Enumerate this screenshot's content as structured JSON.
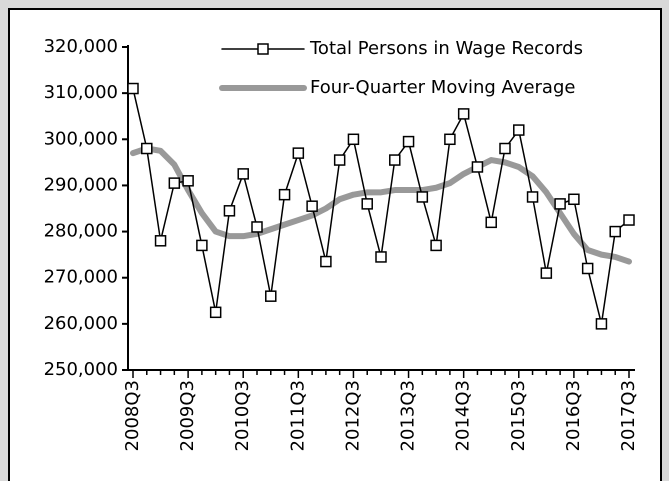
{
  "chart_data": {
    "type": "line",
    "categories": [
      "2008Q3",
      null,
      null,
      null,
      "2009Q3",
      null,
      null,
      null,
      "2010Q3",
      null,
      null,
      null,
      "2011Q3",
      null,
      null,
      null,
      "2012Q3",
      null,
      null,
      null,
      "2013Q3",
      null,
      null,
      null,
      "2014Q3",
      null,
      null,
      null,
      "2015Q3",
      null,
      null,
      null,
      "2016Q3",
      null,
      null,
      null,
      "2017Q3"
    ],
    "series": [
      {
        "name": "Total Persons in Wage Records",
        "color": "#000000",
        "marker": "square",
        "values": [
          311000,
          298000,
          278000,
          290500,
          291000,
          277000,
          262500,
          284500,
          292500,
          281000,
          266000,
          288000,
          297000,
          285500,
          273500,
          295500,
          300000,
          286000,
          274500,
          295500,
          299500,
          287500,
          277000,
          300000,
          305500,
          294000,
          282000,
          298000,
          302000,
          287500,
          271000,
          286000,
          287000,
          272000,
          260000,
          280000,
          282500
        ]
      },
      {
        "name": "Four-Quarter Moving Average",
        "color": "#999999",
        "values": [
          297000,
          298000,
          297500,
          294500,
          289000,
          284000,
          280000,
          279000,
          279000,
          279500,
          280500,
          281500,
          282500,
          283500,
          285000,
          287000,
          288000,
          288500,
          288500,
          289000,
          289000,
          289000,
          289500,
          290500,
          292500,
          294000,
          295500,
          295000,
          294000,
          292000,
          288500,
          284000,
          279500,
          276000,
          275000,
          274500,
          273500
        ]
      }
    ],
    "ylim": [
      250000,
      320000
    ],
    "yticks": [
      {
        "value": 250000,
        "label": "250,000"
      },
      {
        "value": 260000,
        "label": "260,000"
      },
      {
        "value": 270000,
        "label": "270,000"
      },
      {
        "value": 280000,
        "label": "280,000"
      },
      {
        "value": 290000,
        "label": "290,000"
      },
      {
        "value": 300000,
        "label": "300,000"
      },
      {
        "value": 310000,
        "label": "310,000"
      },
      {
        "value": 320000,
        "label": "320,000"
      }
    ],
    "grid": false,
    "legend": "top-right"
  }
}
